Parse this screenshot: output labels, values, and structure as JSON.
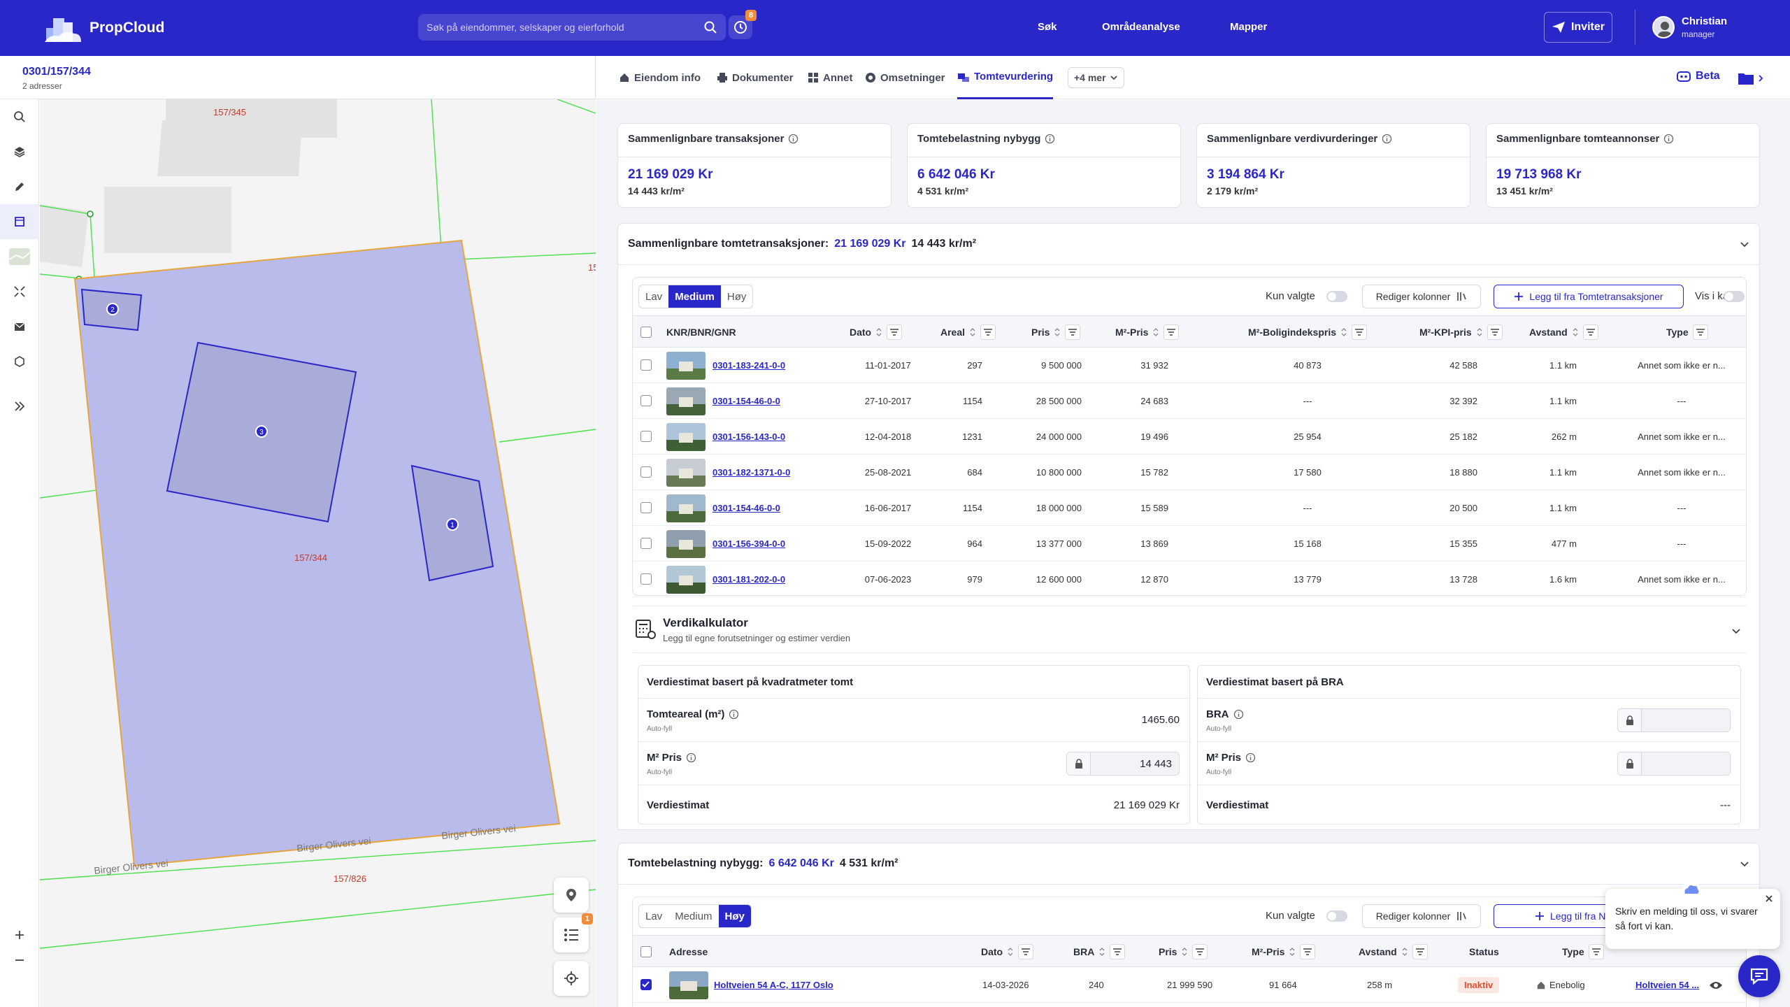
{
  "app": {
    "name": "PropCloud"
  },
  "search": {
    "placeholder": "Søk på eiendommer, selskaper og eierforhold"
  },
  "history_badge": "8",
  "nav": {
    "sok": "Søk",
    "omrade": "Områdeanalyse",
    "mapper": "Mapper",
    "invite": "Inviter"
  },
  "user": {
    "name": "Christian",
    "role": "manager"
  },
  "property": {
    "id": "0301/157/344",
    "addresses": "2 adresser"
  },
  "tabs": [
    {
      "label": "Eiendom info",
      "icon": "house-icon"
    },
    {
      "label": "Dokumenter",
      "icon": "printer-icon"
    },
    {
      "label": "Annet",
      "icon": "grid-icon"
    },
    {
      "label": "Omsetninger",
      "icon": "coin-icon"
    },
    {
      "label": "Tomtevurdering",
      "icon": "tomt-icon"
    }
  ],
  "tabs_more": "+4 mer",
  "beta": "Beta",
  "map": {
    "labels": {
      "top": "157/345",
      "main": "157/344",
      "bottom": "157/826",
      "edge": "15",
      "road1": "Birger Olivers vei",
      "road2": "Birger Olivers vei",
      "road3": "Birger Olivers vei"
    },
    "markers": [
      "1",
      "2",
      "3"
    ],
    "list_badge": "1"
  },
  "kpis": [
    {
      "label": "Sammenlignbare transaksjoner",
      "value": "21 169 029 Kr",
      "per": "14 443 kr/m²"
    },
    {
      "label": "Tomtebelastning nybygg",
      "value": "6 642 046 Kr",
      "per": "4 531 kr/m²"
    },
    {
      "label": "Sammenlignbare verdivurderinger",
      "value": "3 194 864 Kr",
      "per": "2 179 kr/m²"
    },
    {
      "label": "Sammenlignbare tomteannonser",
      "value": "19 713 968 Kr",
      "per": "13 451 kr/m²"
    }
  ],
  "sec1": {
    "title": "Sammenlignbare tomtetransaksjoner:",
    "value": "21 169 029 Kr",
    "per": "14 443 kr/m²",
    "levels": [
      "Lav",
      "Medium",
      "Høy"
    ],
    "only_selected": "Kun valgte",
    "edit_cols": "Rediger kolonner",
    "add": "Legg til fra Tomtetransaksjoner",
    "show_map": "Vis i kart",
    "columns": [
      "KNR/BNR/GNR",
      "Dato",
      "Areal",
      "Pris",
      "M²-Pris",
      "M²-Boligindekspris",
      "M²-KPI-pris",
      "Avstand",
      "Type"
    ],
    "rows": [
      {
        "id": "0301-183-241-0-0",
        "dato": "11-01-2017",
        "areal": "297",
        "pris": "9 500 000",
        "m2": "31 932",
        "bolig": "40 873",
        "kpi": "42 588",
        "avstand": "1.1 km",
        "type": "Annet som ikke er n..."
      },
      {
        "id": "0301-154-46-0-0",
        "dato": "27-10-2017",
        "areal": "1154",
        "pris": "28 500 000",
        "m2": "24 683",
        "bolig": "---",
        "kpi": "32 392",
        "avstand": "1.1 km",
        "type": "---"
      },
      {
        "id": "0301-156-143-0-0",
        "dato": "12-04-2018",
        "areal": "1231",
        "pris": "24 000 000",
        "m2": "19 496",
        "bolig": "25 954",
        "kpi": "25 182",
        "avstand": "262 m",
        "type": "Annet som ikke er n..."
      },
      {
        "id": "0301-182-1371-0-0",
        "dato": "25-08-2021",
        "areal": "684",
        "pris": "10 800 000",
        "m2": "15 782",
        "bolig": "17 580",
        "kpi": "18 880",
        "avstand": "1.1 km",
        "type": "Annet som ikke er n..."
      },
      {
        "id": "0301-154-46-0-0",
        "dato": "16-06-2017",
        "areal": "1154",
        "pris": "18 000 000",
        "m2": "15 589",
        "bolig": "---",
        "kpi": "20 500",
        "avstand": "1.1 km",
        "type": "---"
      },
      {
        "id": "0301-156-394-0-0",
        "dato": "15-09-2022",
        "areal": "964",
        "pris": "13 377 000",
        "m2": "13 869",
        "bolig": "15 168",
        "kpi": "15 355",
        "avstand": "477 m",
        "type": "---"
      },
      {
        "id": "0301-181-202-0-0",
        "dato": "07-06-2023",
        "areal": "979",
        "pris": "12 600 000",
        "m2": "12 870",
        "bolig": "13 779",
        "kpi": "13 728",
        "avstand": "1.6 km",
        "type": "Annet som ikke er n..."
      }
    ]
  },
  "calc": {
    "title": "Verdikalkulator",
    "subtitle": "Legg til egne forutsetninger og estimer verdien",
    "left": {
      "title": "Verdiestimat basert på kvadratmeter tomt",
      "area_label": "Tomteareal (m²)",
      "autofill": "Auto-fyll",
      "area_value": "1465.60",
      "price_label": "M² Pris",
      "price_value": "14 443",
      "estimate_label": "Verdiestimat",
      "estimate_value": "21 169 029 Kr"
    },
    "right": {
      "title": "Verdiestimat basert på BRA",
      "bra_label": "BRA",
      "autofill": "Auto-fyll",
      "price_label": "M² Pris",
      "estimate_label": "Verdiestimat",
      "estimate_value": "---"
    }
  },
  "sec2": {
    "title": "Tomtebelastning nybygg:",
    "value": "6 642 046 Kr",
    "per": "4 531 kr/m²",
    "levels": [
      "Lav",
      "Medium",
      "Høy"
    ],
    "only_selected": "Kun valgte",
    "edit_cols": "Rediger kolonner",
    "add": "Legg til fra Ny",
    "columns": [
      "Adresse",
      "Dato",
      "BRA",
      "Pris",
      "M²-Pris",
      "Avstand",
      "Status",
      "Type"
    ],
    "rows": [
      {
        "adresse": "Holtveien 54 A-C, 1177 Oslo",
        "dato": "14-03-2026",
        "bra": "240",
        "pris": "21 999 590",
        "m2": "91 664",
        "avstand": "258 m",
        "status": "Inaktiv",
        "type": "Enebolig",
        "link": "Holtveien 54 ..."
      }
    ]
  },
  "chat": {
    "message": "Skriv en melding til oss, vi svarer så fort vi kan."
  },
  "colors": {
    "brand": "#2a27c9",
    "badge": "#f08c3a"
  }
}
